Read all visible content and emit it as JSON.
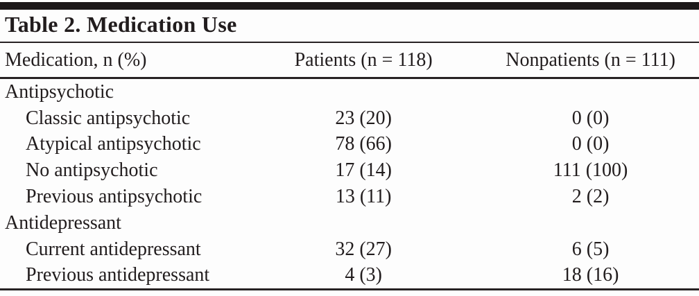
{
  "table": {
    "title": "Table 2. Medication Use",
    "columns": [
      "Medication, n (%)",
      "Patients (n = 118)",
      "Nonpatients (n = 111)"
    ],
    "rows": [
      {
        "label": "Antipsychotic",
        "patients": "",
        "nonpatients": ""
      },
      {
        "label": "Classic antipsychotic",
        "patients": "23 (20)",
        "nonpatients": "0 (0)"
      },
      {
        "label": "Atypical antipsychotic",
        "patients": "78 (66)",
        "nonpatients": "0 (0)"
      },
      {
        "label": "No antipsychotic",
        "patients": "17 (14)",
        "nonpatients": "111 (100)"
      },
      {
        "label": "Previous antipsychotic",
        "patients": "13 (11)",
        "nonpatients": "2 (2)"
      },
      {
        "label": "Antidepressant",
        "patients": "",
        "nonpatients": ""
      },
      {
        "label": "Current antidepressant",
        "patients": "32 (27)",
        "nonpatients": "6 (5)"
      },
      {
        "label": "Previous antidepressant",
        "patients": "4 (3)",
        "nonpatients": "18 (16)"
      }
    ],
    "colors": {
      "text": "#211c1d",
      "rule": "#272223",
      "top_bar": "#1c1819",
      "background": "#fdfdfd"
    }
  }
}
